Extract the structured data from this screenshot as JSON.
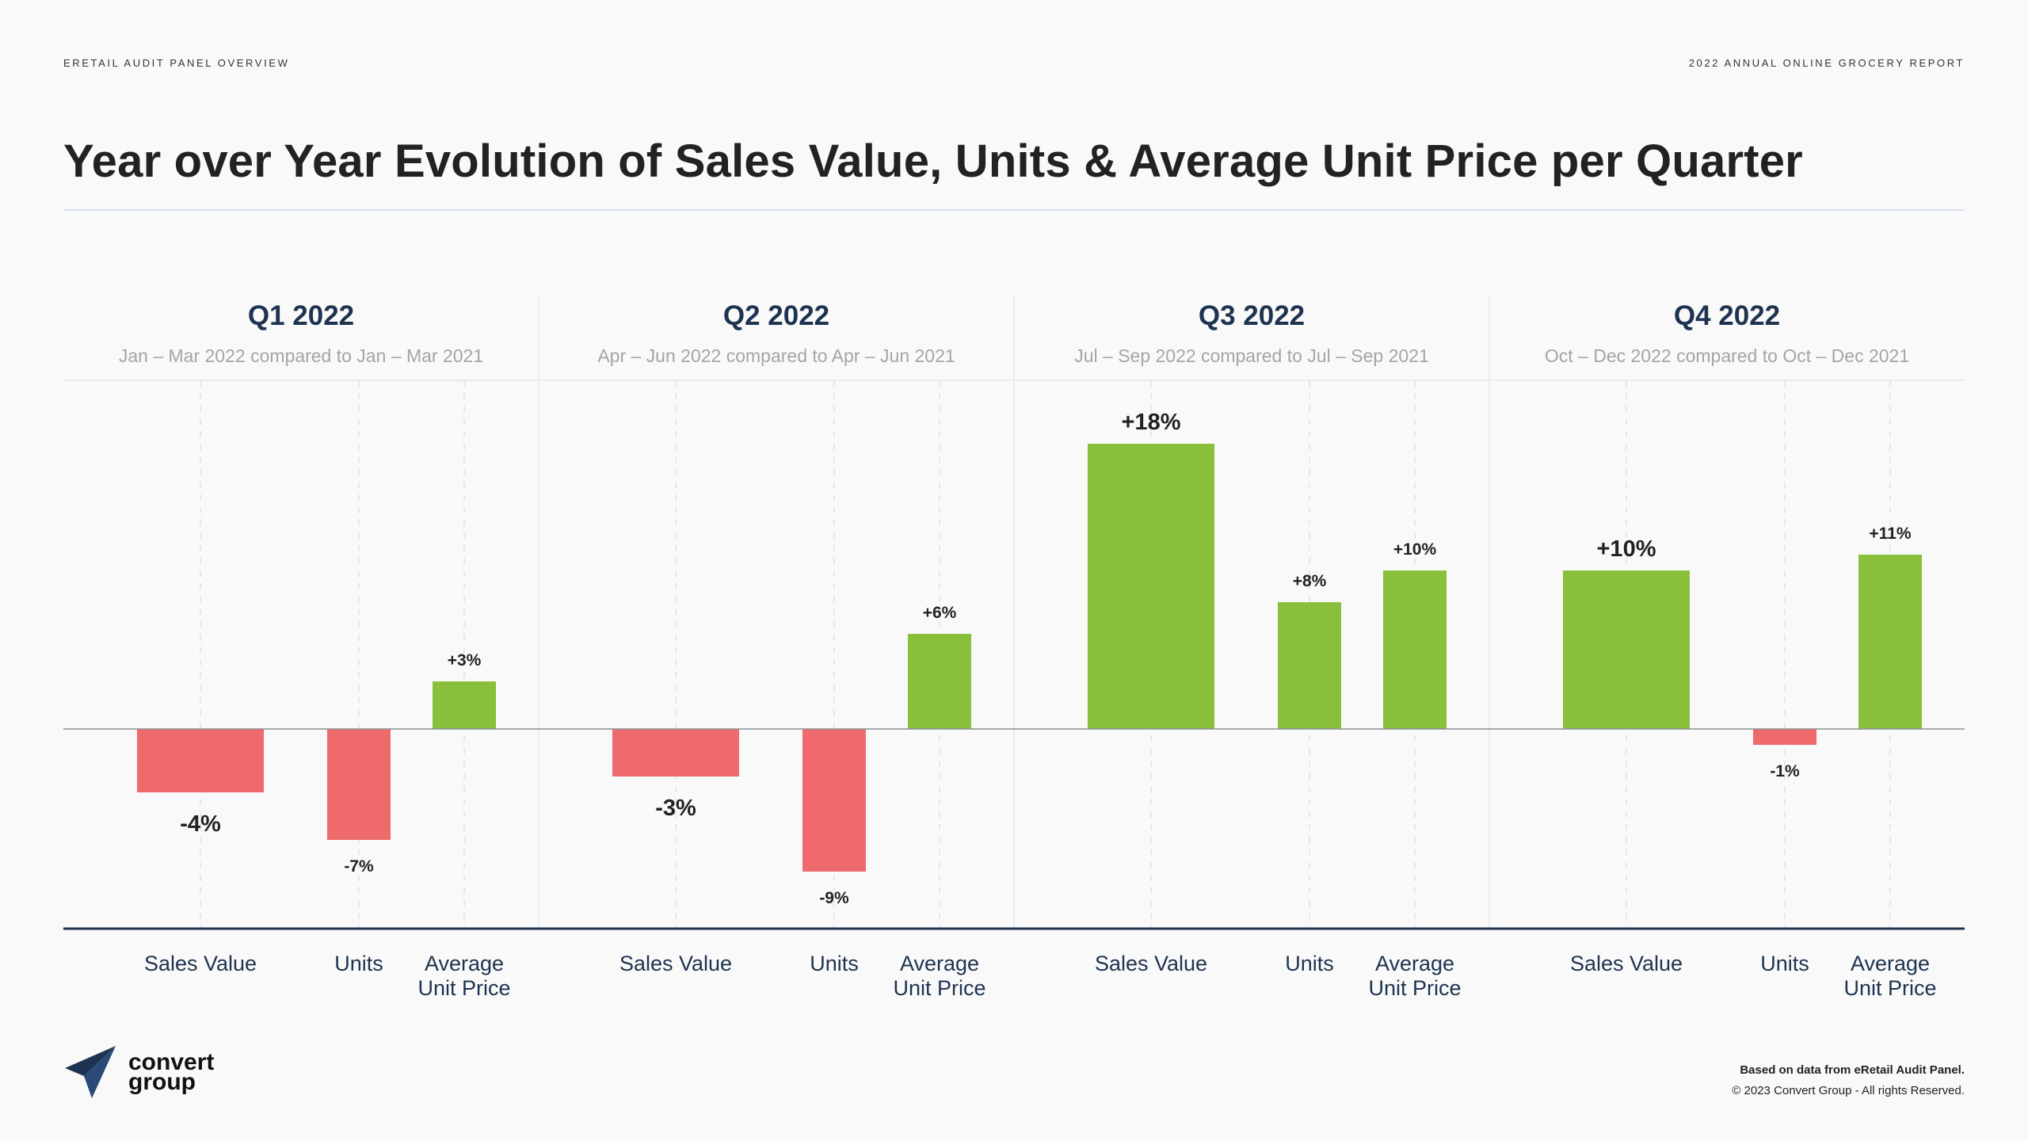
{
  "header": {
    "left_label": "ERETAIL AUDIT PANEL OVERVIEW",
    "right_label": "2022 ANNUAL ONLINE GROCERY REPORT"
  },
  "title": "Year over Year Evolution of Sales Value, Units & Average Unit Price per Quarter",
  "colors": {
    "positive": "#8abf3b",
    "negative": "#ee6a6d",
    "quarter_title": "#1e3350",
    "subtitle": "#a5a5a5",
    "axis": "#1e3350"
  },
  "chart_data": {
    "type": "bar",
    "unit": "% change year over year",
    "ylim": [
      -10,
      20
    ],
    "groups": [
      {
        "title": "Q1 2022",
        "subtitle": "Jan – Mar 2022 compared to Jan – Mar 2021",
        "bars": [
          {
            "category": "Sales Value",
            "value": -4,
            "label": "-4%"
          },
          {
            "category": "Units",
            "value": -7,
            "label": "-7%"
          },
          {
            "category": "Average Unit Price",
            "value": 3,
            "label": "+3%"
          }
        ]
      },
      {
        "title": "Q2 2022",
        "subtitle": "Apr – Jun 2022 compared to Apr – Jun 2021",
        "bars": [
          {
            "category": "Sales Value",
            "value": -3,
            "label": "-3%"
          },
          {
            "category": "Units",
            "value": -9,
            "label": "-9%"
          },
          {
            "category": "Average Unit Price",
            "value": 6,
            "label": "+6%"
          }
        ]
      },
      {
        "title": "Q3 2022",
        "subtitle": "Jul – Sep 2022 compared to Jul – Sep 2021",
        "bars": [
          {
            "category": "Sales Value",
            "value": 18,
            "label": "+18%"
          },
          {
            "category": "Units",
            "value": 8,
            "label": "+8%"
          },
          {
            "category": "Average Unit Price",
            "value": 10,
            "label": "+10%"
          }
        ]
      },
      {
        "title": "Q4 2022",
        "subtitle": "Oct – Dec 2022 compared to Oct – Dec 2021",
        "bars": [
          {
            "category": "Sales Value",
            "value": 10,
            "label": "+10%"
          },
          {
            "category": "Units",
            "value": -1,
            "label": "-1%"
          },
          {
            "category": "Average Unit Price",
            "value": 11,
            "label": "+11%"
          }
        ]
      }
    ],
    "category_labels": [
      [
        "Sales Value"
      ],
      [
        "Units"
      ],
      [
        "Average",
        "Unit Price"
      ]
    ]
  },
  "logo": {
    "line1": "convert",
    "line2": "group"
  },
  "footer": {
    "source": "Based on data from eRetail Audit Panel.",
    "copyright": "© 2023 Convert Group - All rights Reserved."
  }
}
